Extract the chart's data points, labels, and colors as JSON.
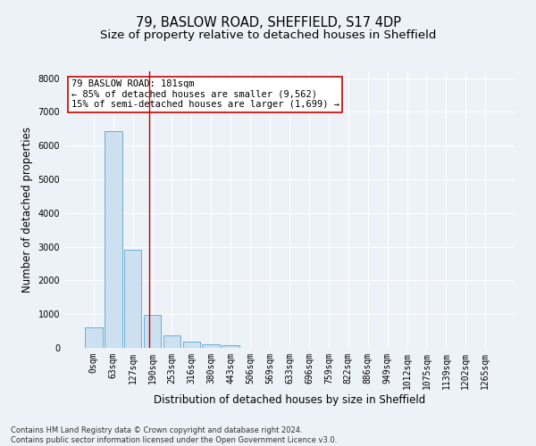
{
  "title": "79, BASLOW ROAD, SHEFFIELD, S17 4DP",
  "subtitle": "Size of property relative to detached houses in Sheffield",
  "xlabel": "Distribution of detached houses by size in Sheffield",
  "ylabel": "Number of detached properties",
  "footer_line1": "Contains HM Land Registry data © Crown copyright and database right 2024.",
  "footer_line2": "Contains public sector information licensed under the Open Government Licence v3.0.",
  "bar_labels": [
    "0sqm",
    "63sqm",
    "127sqm",
    "190sqm",
    "253sqm",
    "316sqm",
    "380sqm",
    "443sqm",
    "506sqm",
    "569sqm",
    "633sqm",
    "696sqm",
    "759sqm",
    "822sqm",
    "886sqm",
    "949sqm",
    "1012sqm",
    "1075sqm",
    "1139sqm",
    "1202sqm",
    "1265sqm"
  ],
  "bar_values": [
    620,
    6420,
    2920,
    990,
    380,
    175,
    100,
    85,
    0,
    0,
    0,
    0,
    0,
    0,
    0,
    0,
    0,
    0,
    0,
    0,
    0
  ],
  "bar_color": "#cce0f0",
  "bar_edgecolor": "#6baed6",
  "vline_x": 2.85,
  "vline_color": "#cc0000",
  "annotation_text": "79 BASLOW ROAD: 181sqm\n← 85% of detached houses are smaller (9,562)\n15% of semi-detached houses are larger (1,699) →",
  "annotation_box_color": "#ffffff",
  "annotation_box_edgecolor": "#cc0000",
  "ylim": [
    0,
    8200
  ],
  "yticks": [
    0,
    1000,
    2000,
    3000,
    4000,
    5000,
    6000,
    7000,
    8000
  ],
  "bg_color": "#edf2f8",
  "plot_bg_color": "#edf2f8",
  "grid_color": "#ffffff",
  "title_fontsize": 10.5,
  "subtitle_fontsize": 9.5,
  "tick_fontsize": 7,
  "ylabel_fontsize": 8.5,
  "xlabel_fontsize": 8.5,
  "footer_fontsize": 6,
  "annot_fontsize": 7.5
}
